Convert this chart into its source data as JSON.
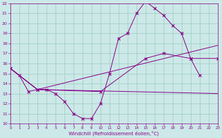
{
  "bg_color": "#cce8e8",
  "line_color": "#880088",
  "grid_color": "#99ccbb",
  "xlabel": "Windchill (Refroidissement éolien,°C)",
  "xlim": [
    0,
    23
  ],
  "ylim": [
    10,
    22
  ],
  "xticks": [
    0,
    1,
    2,
    3,
    4,
    5,
    6,
    7,
    8,
    9,
    10,
    11,
    12,
    13,
    14,
    15,
    16,
    17,
    18,
    19,
    20,
    21,
    22,
    23
  ],
  "yticks": [
    10,
    11,
    12,
    13,
    14,
    15,
    16,
    17,
    18,
    19,
    20,
    21,
    22
  ],
  "line1_x": [
    0,
    1,
    2,
    3,
    4,
    5,
    6,
    7,
    8,
    9,
    10,
    11,
    12,
    13,
    14,
    15,
    16,
    17,
    18,
    19,
    20,
    21
  ],
  "line1_y": [
    15.5,
    14.8,
    13.2,
    13.4,
    13.4,
    13.0,
    12.2,
    11.0,
    10.5,
    10.5,
    12.0,
    15.0,
    18.5,
    19.0,
    21.0,
    22.2,
    21.5,
    20.8,
    19.8,
    19.0,
    16.5,
    14.8
  ],
  "line2_x": [
    0,
    3,
    23
  ],
  "line2_y": [
    15.5,
    13.4,
    17.8
  ],
  "line3_x": [
    0,
    3,
    10,
    15,
    17,
    20,
    23
  ],
  "line3_y": [
    15.5,
    13.4,
    13.2,
    16.5,
    17.0,
    16.5,
    16.5
  ],
  "line4_x": [
    0,
    3,
    23
  ],
  "line4_y": [
    15.5,
    13.4,
    13.0
  ],
  "figsize": [
    3.2,
    2.0
  ],
  "dpi": 100
}
